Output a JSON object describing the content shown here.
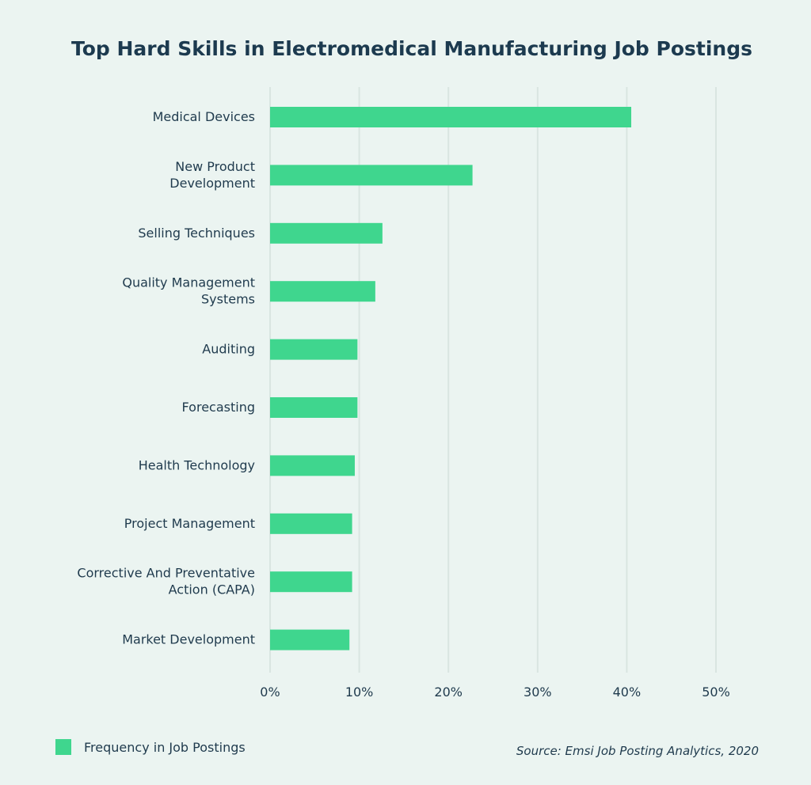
{
  "chart_data": {
    "type": "bar",
    "orientation": "horizontal",
    "title": "Top Hard Skills in Electromedical Manufacturing Job Postings",
    "categories": [
      [
        "Medical Devices"
      ],
      [
        "New Product",
        "Development"
      ],
      [
        "Selling Techniques"
      ],
      [
        "Quality Management",
        "Systems"
      ],
      [
        "Auditing"
      ],
      [
        "Forecasting"
      ],
      [
        "Health Technology"
      ],
      [
        "Project Management"
      ],
      [
        "Corrective And Preventative",
        "Action (CAPA)"
      ],
      [
        "Market Development"
      ]
    ],
    "series": [
      {
        "name": "Frequency in Job Postings",
        "values": [
          40.5,
          22.7,
          12.6,
          11.8,
          9.8,
          9.8,
          9.5,
          9.2,
          9.2,
          8.9
        ],
        "color": "#3fd68e"
      }
    ],
    "xlim": [
      0,
      50
    ],
    "xticks": [
      0,
      10,
      20,
      30,
      40,
      50
    ],
    "xtick_labels": [
      "0%",
      "10%",
      "20%",
      "30%",
      "40%",
      "50%"
    ],
    "grid": true,
    "gridline_color": "#d9e5e1",
    "legend_position": "bottom-left",
    "source": "Source: Emsi Job Posting Analytics, 2020"
  }
}
